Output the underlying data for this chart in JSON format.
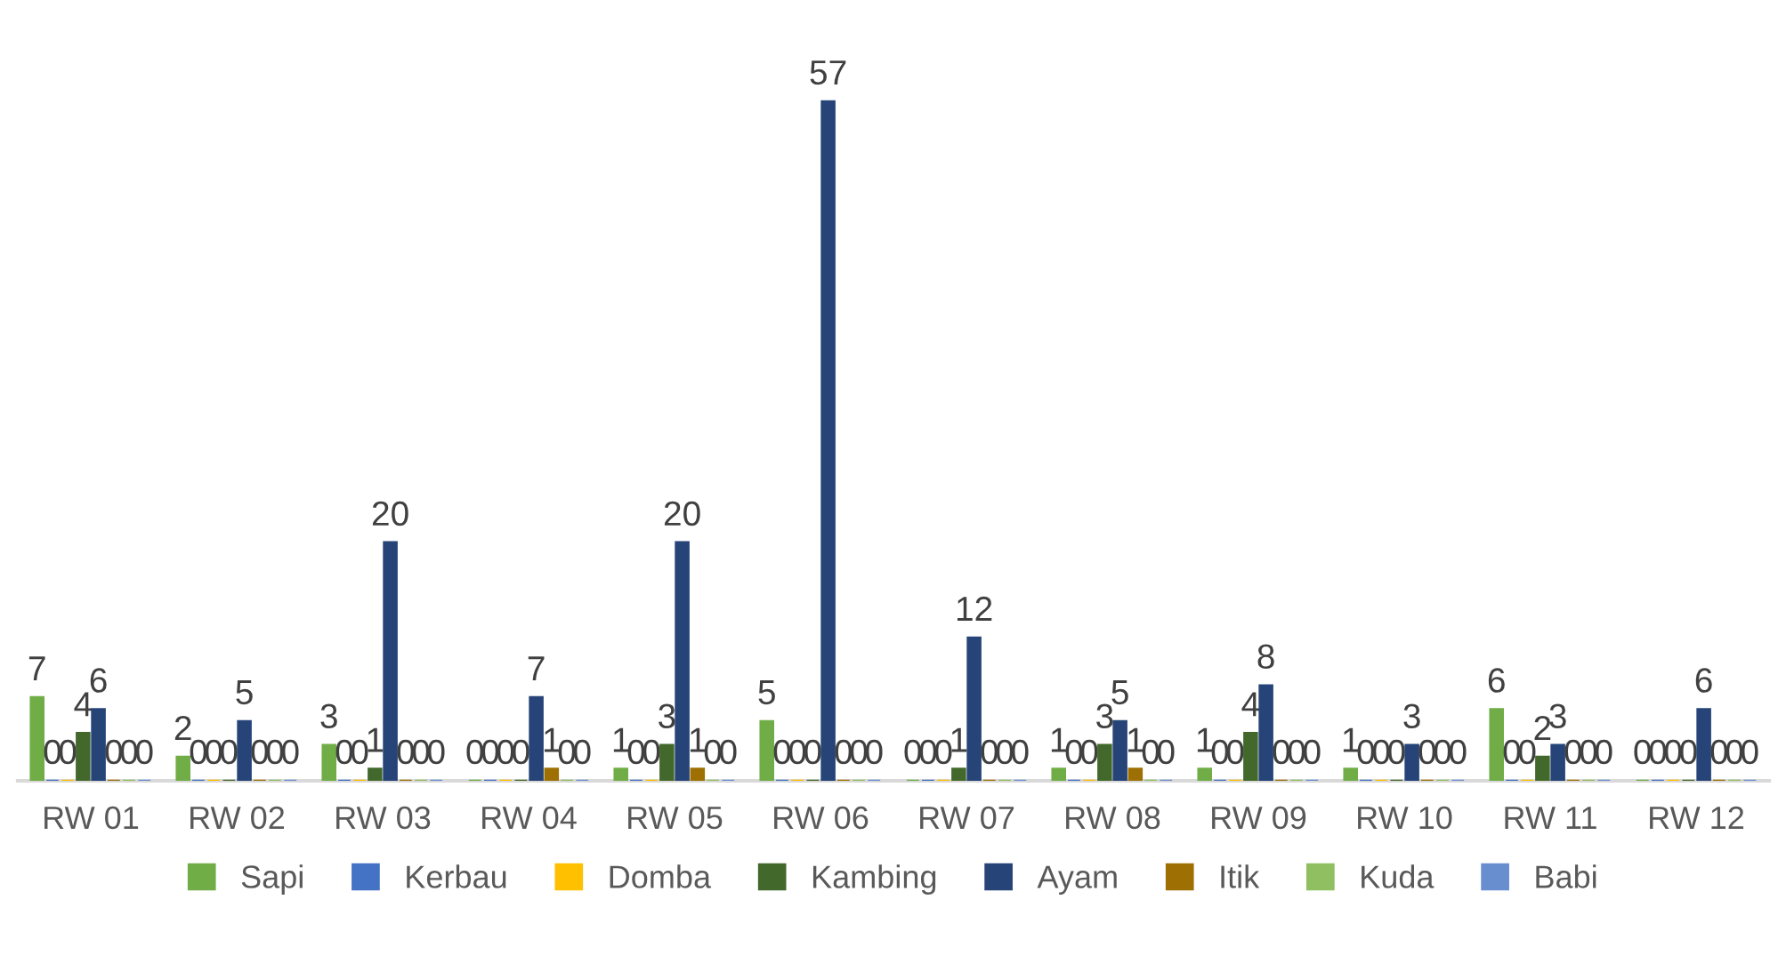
{
  "chart_data": {
    "type": "bar",
    "categories": [
      "RW 01",
      "RW 02",
      "RW 03",
      "RW 04",
      "RW 05",
      "RW 06",
      "RW 07",
      "RW 08",
      "RW 09",
      "RW 10",
      "RW 11",
      "RW 12"
    ],
    "series": [
      {
        "name": "Sapi",
        "color": "#70ad47",
        "values": [
          7,
          2,
          3,
          0,
          1,
          5,
          0,
          1,
          1,
          1,
          6,
          0
        ]
      },
      {
        "name": "Kerbau",
        "color": "#4472c4",
        "values": [
          0,
          0,
          0,
          0,
          0,
          0,
          0,
          0,
          0,
          0,
          0,
          0
        ]
      },
      {
        "name": "Domba",
        "color": "#ffc000",
        "values": [
          0,
          0,
          0,
          0,
          0,
          0,
          0,
          0,
          0,
          0,
          0,
          0
        ]
      },
      {
        "name": "Kambing",
        "color": "#43682b",
        "values": [
          4,
          0,
          1,
          0,
          3,
          0,
          1,
          3,
          4,
          0,
          2,
          0
        ]
      },
      {
        "name": "Ayam",
        "color": "#264478",
        "values": [
          6,
          5,
          20,
          7,
          20,
          57,
          12,
          5,
          8,
          3,
          3,
          6
        ]
      },
      {
        "name": "Itik",
        "color": "#9e7004",
        "values": [
          0,
          0,
          0,
          1,
          1,
          0,
          0,
          1,
          0,
          0,
          0,
          0
        ]
      },
      {
        "name": "Kuda",
        "color": "#8fbf60",
        "values": [
          0,
          0,
          0,
          0,
          0,
          0,
          0,
          0,
          0,
          0,
          0,
          0
        ]
      },
      {
        "name": "Babi",
        "color": "#698ed0",
        "values": [
          0,
          0,
          0,
          0,
          0,
          0,
          0,
          0,
          0,
          0,
          0,
          0
        ]
      }
    ],
    "data_labels": true,
    "legend": "bottom",
    "grid": false
  }
}
